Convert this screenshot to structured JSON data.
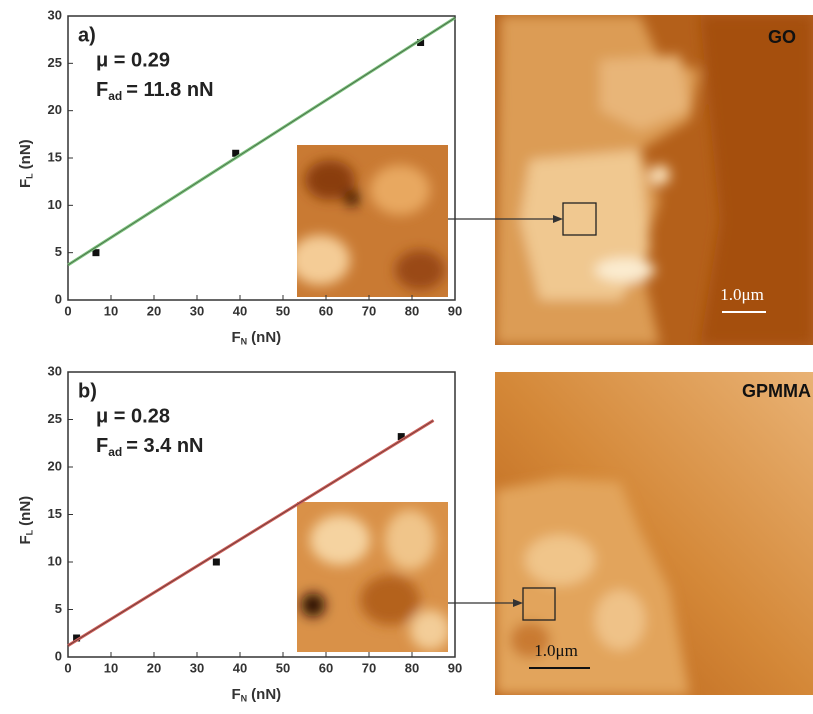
{
  "chart_data": [
    {
      "type": "scatter",
      "panel_label": "a)",
      "annotations": [
        {
          "text": "μ = 0.29"
        },
        {
          "symbol": "F",
          "subscript": "ad",
          "text": "= 11.8 nN"
        }
      ],
      "xlabel": {
        "symbol": "F",
        "subscript": "N",
        "text": "(nN)"
      },
      "ylabel": {
        "symbol": "F",
        "subscript": "L",
        "text": "(nN)"
      },
      "xlim": [
        0,
        90
      ],
      "ylim": [
        0,
        30
      ],
      "xticks": [
        0,
        10,
        20,
        30,
        40,
        50,
        60,
        70,
        80,
        90
      ],
      "yticks": [
        0,
        5,
        10,
        15,
        20,
        25,
        30
      ],
      "series": [
        {
          "kind": "points",
          "color": "#111111",
          "x": [
            6.5,
            39,
            82
          ],
          "values": [
            5,
            15.5,
            27.2
          ]
        },
        {
          "kind": "line",
          "color": "#7cc47c",
          "x": [
            0,
            90
          ],
          "values": [
            3.7,
            29.8
          ]
        }
      ]
    },
    {
      "type": "scatter",
      "panel_label": "b)",
      "annotations": [
        {
          "text": "μ = 0.28"
        },
        {
          "symbol": "F",
          "subscript": "ad",
          "text": "= 3.4 nN"
        }
      ],
      "xlabel": {
        "symbol": "F",
        "subscript": "N",
        "text": "(nN)"
      },
      "ylabel": {
        "symbol": "F",
        "subscript": "L",
        "text": "(nN)"
      },
      "xlim": [
        0,
        90
      ],
      "ylim": [
        0,
        30
      ],
      "xticks": [
        0,
        10,
        20,
        30,
        40,
        50,
        60,
        70,
        80,
        90
      ],
      "yticks": [
        0,
        5,
        10,
        15,
        20,
        25,
        30
      ],
      "series": [
        {
          "kind": "points",
          "color": "#111111",
          "x": [
            2,
            34.5,
            77.5
          ],
          "values": [
            2,
            10,
            23.2
          ]
        },
        {
          "kind": "line",
          "color": "#d0605a",
          "x": [
            0,
            85
          ],
          "values": [
            1.2,
            24.9
          ]
        }
      ]
    }
  ],
  "images": [
    {
      "label": "GO",
      "scale_bar": "1.0μm"
    },
    {
      "label": "GPMMA",
      "scale_bar": "1.0μm"
    }
  ]
}
